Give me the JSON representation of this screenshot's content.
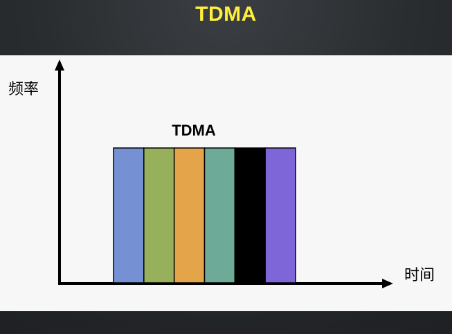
{
  "slide": {
    "title": "TDMA"
  },
  "diagram": {
    "y_axis_label": "频率",
    "x_axis_label": "时间",
    "block_label": "TDMA",
    "slot_colors": [
      "#7591d4",
      "#97b05b",
      "#e3a44a",
      "#6daa97",
      "#000000",
      "#7f66d8"
    ],
    "axis_color": "#000000",
    "slot_border_color": "#000000"
  }
}
